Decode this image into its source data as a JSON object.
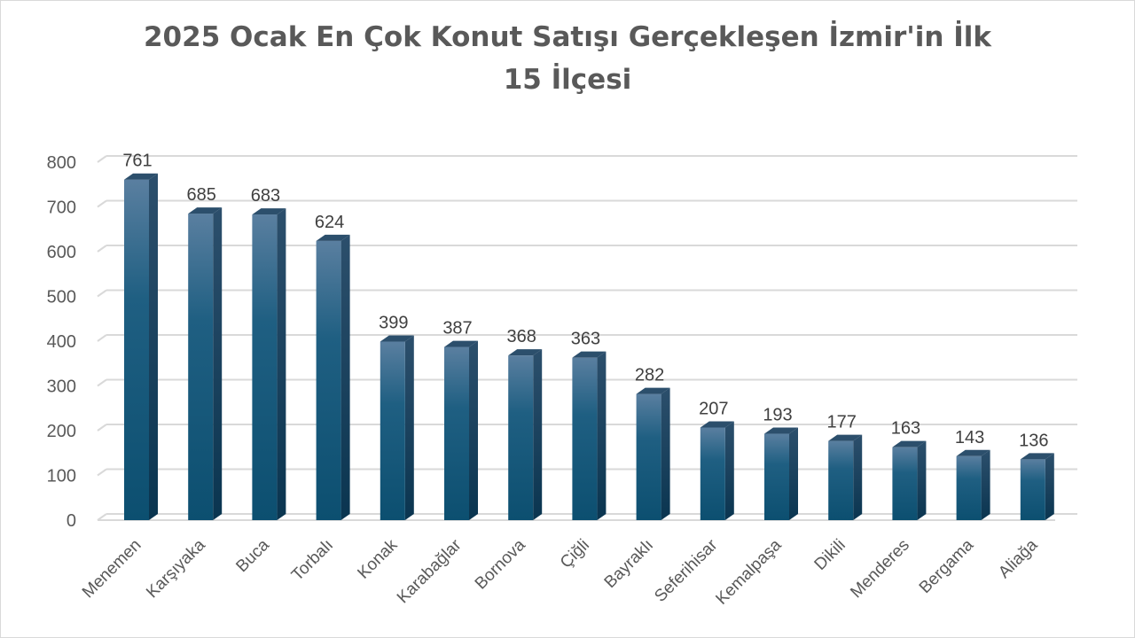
{
  "chart_data": {
    "type": "bar",
    "title_line1": "2025 Ocak En Çok Konut Satışı Gerçekleşen İzmir'in İlk",
    "title_line2": "15 İlçesi",
    "categories": [
      "Menemen",
      "Karşıyaka",
      "Buca",
      "Torbalı",
      "Konak",
      "Karabağlar",
      "Bornova",
      "Çiğli",
      "Bayraklı",
      "Seferihisar",
      "Kemalpaşa",
      "Dikili",
      "Menderes",
      "Bergama",
      "Aliağa"
    ],
    "values": [
      761,
      685,
      683,
      624,
      399,
      387,
      368,
      363,
      282,
      207,
      193,
      177,
      163,
      143,
      136
    ],
    "ylim": [
      0,
      800
    ],
    "yticks": [
      0,
      100,
      200,
      300,
      400,
      500,
      600,
      700,
      800
    ],
    "grid": true,
    "legend": "none",
    "style": "3d-column",
    "colors": {
      "bar_top": "#5a7fa0",
      "bar_mid": "#1f5f82",
      "bar_bottom": "#0c4f70",
      "bar_side": "#0a3550",
      "bar_cap": "#2c4f6c",
      "grid": "#d9d9d9",
      "text": "#595959"
    }
  }
}
